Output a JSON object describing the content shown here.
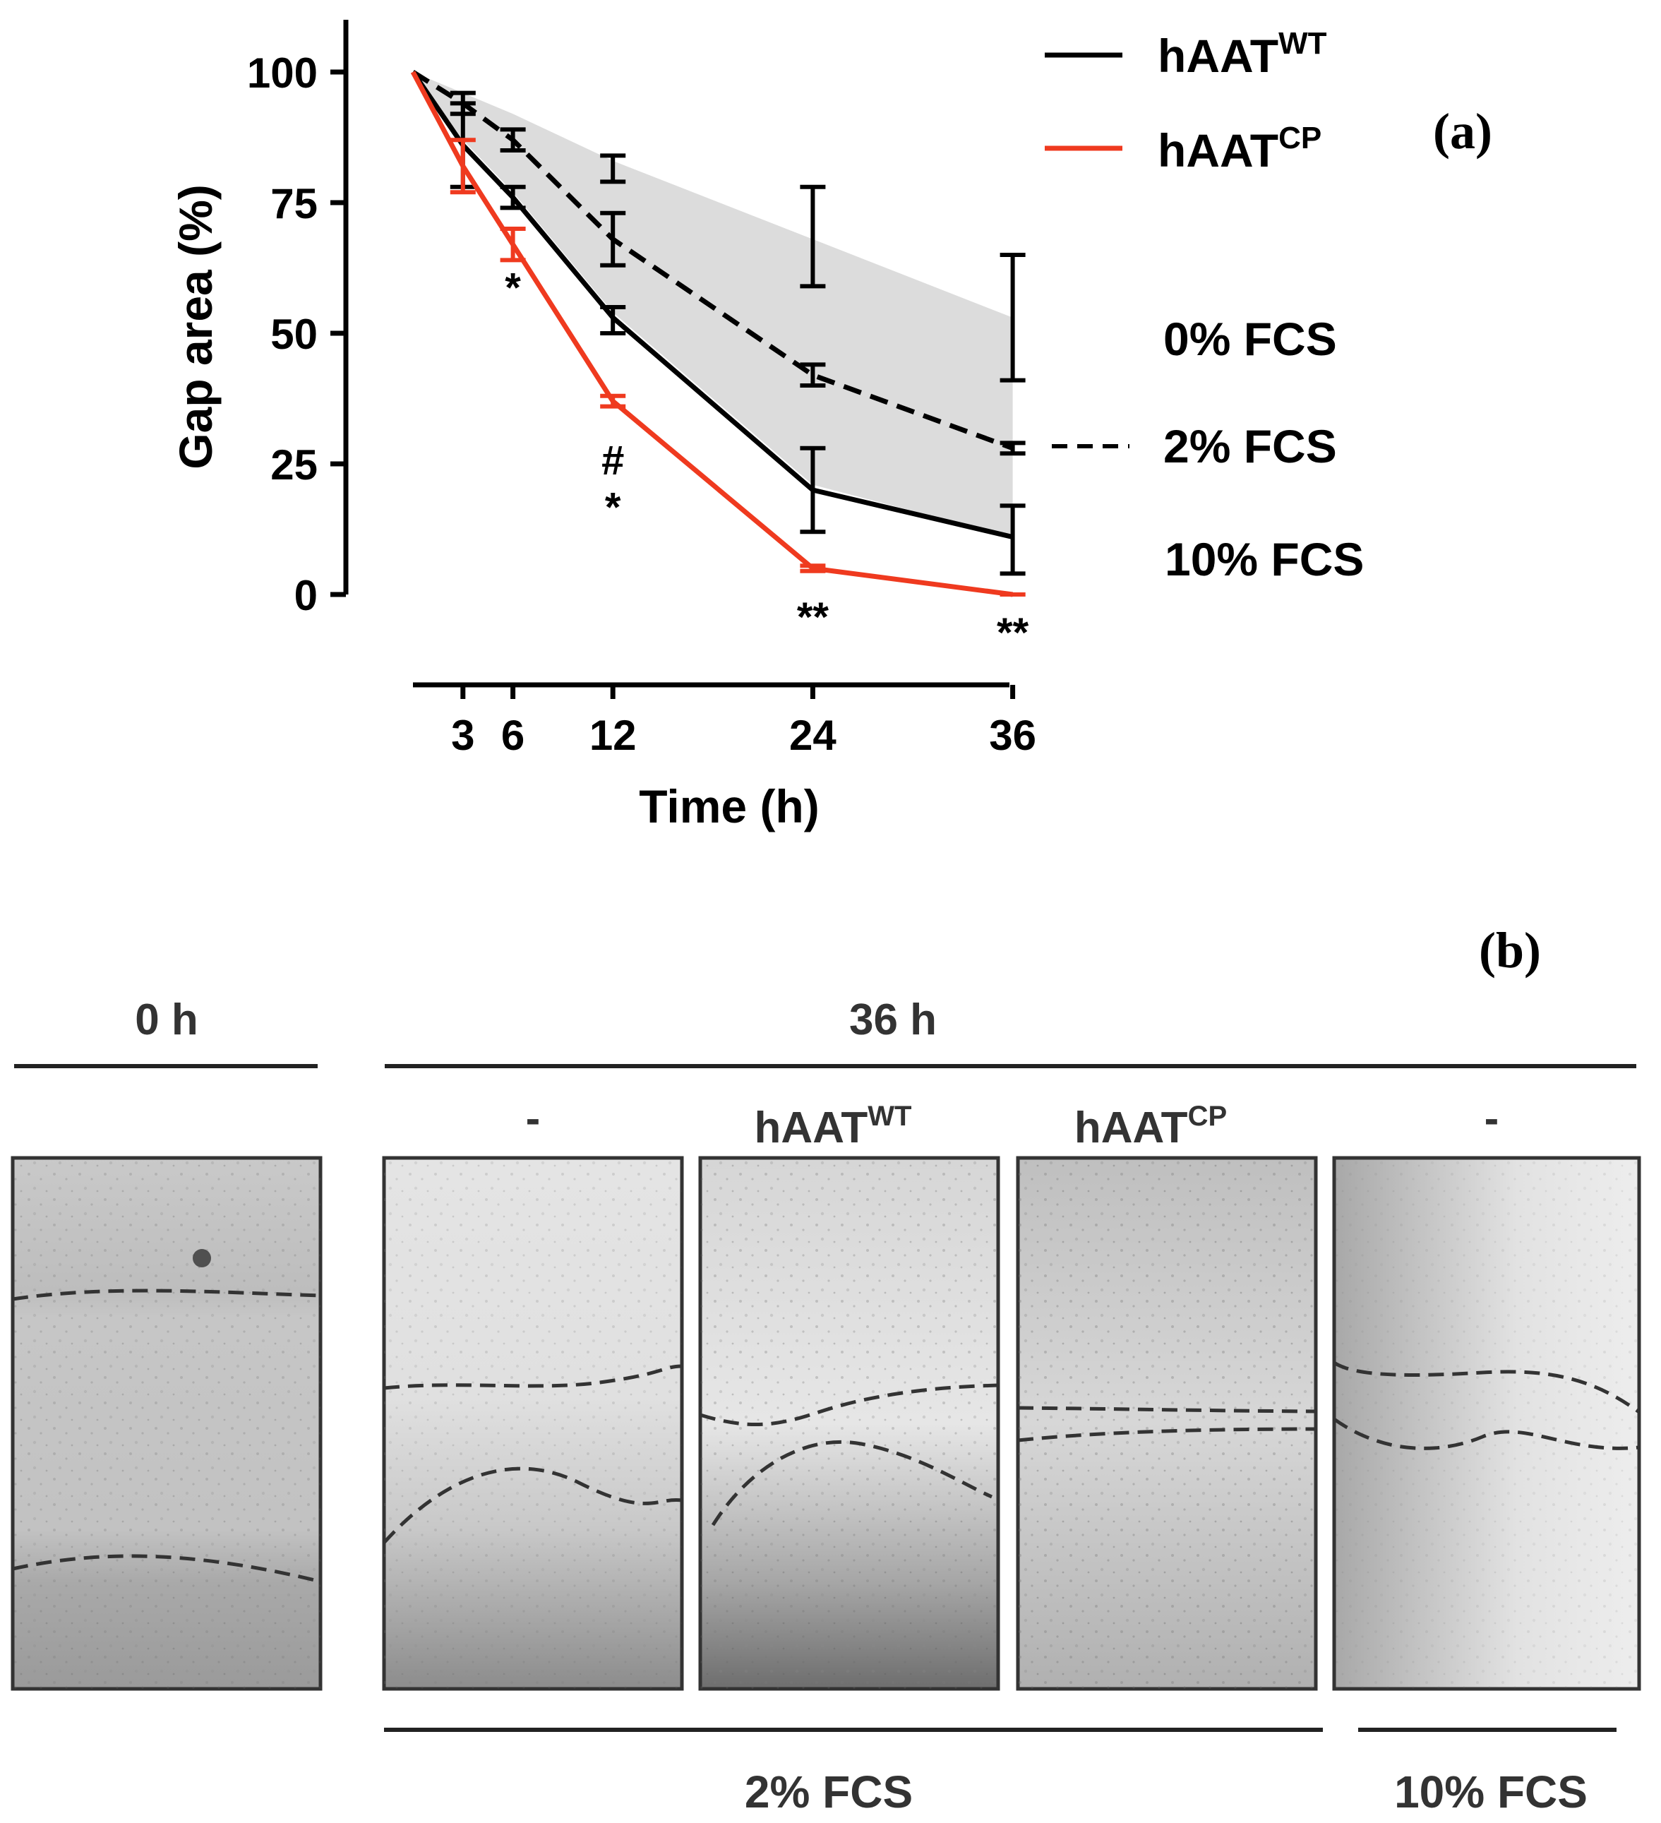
{
  "figure": {
    "panel_a_label": "(a)",
    "panel_b_label": "(b)"
  },
  "chart_data": {
    "type": "line",
    "title": "",
    "xlabel": "Time (h)",
    "ylabel": "Gap area (%)",
    "xlim": [
      0,
      36
    ],
    "ylim": [
      0,
      100
    ],
    "x_ticks": [
      "3",
      "6",
      "12",
      "24",
      "36"
    ],
    "y_ticks": [
      "0",
      "25",
      "50",
      "75",
      "100"
    ],
    "grid": false,
    "series": [
      {
        "name": "hAAT",
        "superscript": "WT",
        "color": "#000000",
        "dash": "solid",
        "x": [
          0,
          3,
          6,
          12,
          24,
          36
        ],
        "y": [
          100,
          86,
          76,
          53,
          20,
          11
        ],
        "err_low": [
          0,
          8,
          2,
          3,
          8,
          7
        ],
        "err_high": [
          0,
          8,
          2,
          2,
          8,
          6
        ]
      },
      {
        "name": "hAAT",
        "superscript": "CP",
        "color": "#ef3a1f",
        "dash": "solid",
        "x": [
          0,
          3,
          6,
          12,
          24,
          36
        ],
        "y": [
          100,
          82,
          67,
          37,
          5,
          0
        ],
        "err_low": [
          0,
          5,
          3,
          1,
          0.5,
          0
        ],
        "err_high": [
          0,
          5,
          3,
          1,
          0.5,
          0
        ]
      },
      {
        "name": "",
        "color": "#000000",
        "dash": "dashed",
        "x": [
          0,
          3,
          6,
          12,
          24,
          36
        ],
        "y": [
          100,
          94,
          87,
          68,
          42,
          28
        ],
        "err_low": [
          0,
          2,
          2,
          5,
          2,
          1
        ],
        "err_high": [
          0,
          2,
          2,
          5,
          2,
          1
        ]
      }
    ],
    "band": {
      "color": "#dcdcdc",
      "x": [
        0,
        3,
        6,
        12,
        24,
        36
      ],
      "upper": [
        100,
        96,
        92,
        83,
        68,
        53
      ],
      "lower": [
        100,
        87,
        77,
        54,
        21,
        11
      ]
    },
    "band_whiskers": [
      {
        "x": 12,
        "low": 79,
        "high": 84
      },
      {
        "x": 24,
        "low": 59,
        "high": 78
      },
      {
        "x": 36,
        "low": 41,
        "high": 65
      }
    ],
    "annotations": [
      {
        "x": 6,
        "y": 56,
        "text": "*"
      },
      {
        "x": 12,
        "y": 23,
        "text": "#"
      },
      {
        "x": 12,
        "y": 14,
        "text": "*"
      },
      {
        "x": 24,
        "y": -7,
        "text": "**"
      },
      {
        "x": 36,
        "y": -10,
        "text": "**"
      }
    ],
    "legend": {
      "position": "top-right",
      "entries": [
        {
          "name": "hAAT",
          "sup": "WT",
          "color": "#000000"
        },
        {
          "name": "hAAT",
          "sup": "CP",
          "color": "#ef3a1f"
        }
      ],
      "fcs_entries": [
        {
          "label": "0% FCS",
          "style": "none"
        },
        {
          "label": "2% FCS",
          "style": "dashed"
        },
        {
          "label": "10% FCS",
          "style": "none"
        }
      ]
    }
  },
  "micrographs": {
    "header_0h": "0 h",
    "header_36h": "36 h",
    "panels": [
      {
        "id": "0h",
        "label": ""
      },
      {
        "id": "ctrl2",
        "label": "-"
      },
      {
        "id": "wt",
        "label": "hAAT",
        "sup": "WT"
      },
      {
        "id": "cp",
        "label": "hAAT",
        "sup": "CP"
      },
      {
        "id": "ctrl10",
        "label": "-"
      }
    ],
    "footer_2": "2% FCS",
    "footer_10": "10% FCS"
  }
}
